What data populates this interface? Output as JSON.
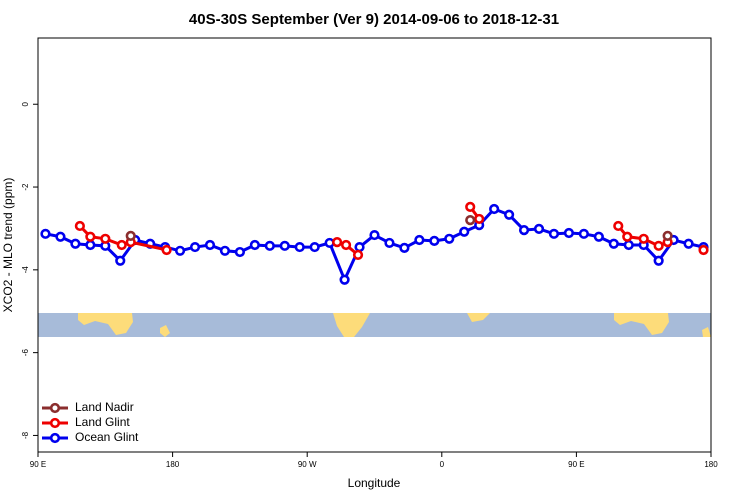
{
  "chart_data": {
    "type": "line",
    "title": "40S-30S September (Ver 9)   2014-09-06 to 2018-12-31",
    "xlabel": "Longitude",
    "ylabel": "XCO2 - MLO trend (ppm)",
    "xlim": [
      90,
      540
    ],
    "ylim": [
      -8.4,
      1.6
    ],
    "xticks": [
      {
        "value": 90,
        "label": "90 E"
      },
      180,
      {
        "value": 270,
        "label": "90 W"
      },
      {
        "value": 360,
        "label": "0"
      },
      {
        "value": 450,
        "label": "90 E"
      },
      {
        "value": 540,
        "label": "180"
      }
    ],
    "yticks": [
      0,
      -2,
      -4,
      -6,
      -8
    ],
    "legend": "bottom-left",
    "series": [
      {
        "name": "Land Nadir",
        "color": "#8b2e2e",
        "x": [
          152,
          null,
          379,
          null,
          511
        ],
        "values": [
          -3.18,
          null,
          -2.8,
          null,
          -3.18
        ]
      },
      {
        "name": "Land Glint",
        "color": "#ee0000",
        "x": [
          118,
          125,
          135,
          146,
          152,
          176,
          null,
          290,
          296,
          304,
          null,
          379,
          385,
          null,
          478,
          484,
          495,
          505,
          511,
          null,
          535
        ],
        "values": [
          -2.94,
          -3.2,
          -3.25,
          -3.4,
          -3.33,
          -3.52,
          null,
          -3.33,
          -3.4,
          -3.64,
          null,
          -2.48,
          -2.77,
          null,
          -2.94,
          -3.2,
          -3.25,
          -3.42,
          -3.33,
          null,
          -3.52
        ]
      },
      {
        "name": "Ocean Glint",
        "color": "#0000ee",
        "x": [
          95,
          105,
          115,
          125,
          135,
          145,
          155,
          165,
          175,
          185,
          195,
          205,
          215,
          225,
          235,
          245,
          255,
          265,
          275,
          285,
          295,
          305,
          315,
          325,
          335,
          345,
          355,
          365,
          375,
          385,
          395,
          405,
          415,
          425,
          435,
          445,
          455,
          465,
          475,
          485,
          495,
          505,
          515,
          525,
          535
        ],
        "values": [
          -3.13,
          -3.2,
          -3.37,
          -3.4,
          -3.42,
          -3.78,
          -3.28,
          -3.37,
          -3.45,
          -3.54,
          -3.45,
          -3.4,
          -3.54,
          -3.57,
          -3.4,
          -3.42,
          -3.42,
          -3.45,
          -3.45,
          -3.35,
          -4.24,
          -3.45,
          -3.16,
          -3.35,
          -3.47,
          -3.28,
          -3.3,
          -3.25,
          -3.08,
          -2.92,
          -2.53,
          -2.67,
          -3.04,
          -3.01,
          -3.13,
          -3.11,
          -3.13,
          -3.2,
          -3.37,
          -3.4,
          -3.4,
          -3.78,
          -3.28,
          -3.37,
          -3.45
        ]
      }
    ]
  }
}
